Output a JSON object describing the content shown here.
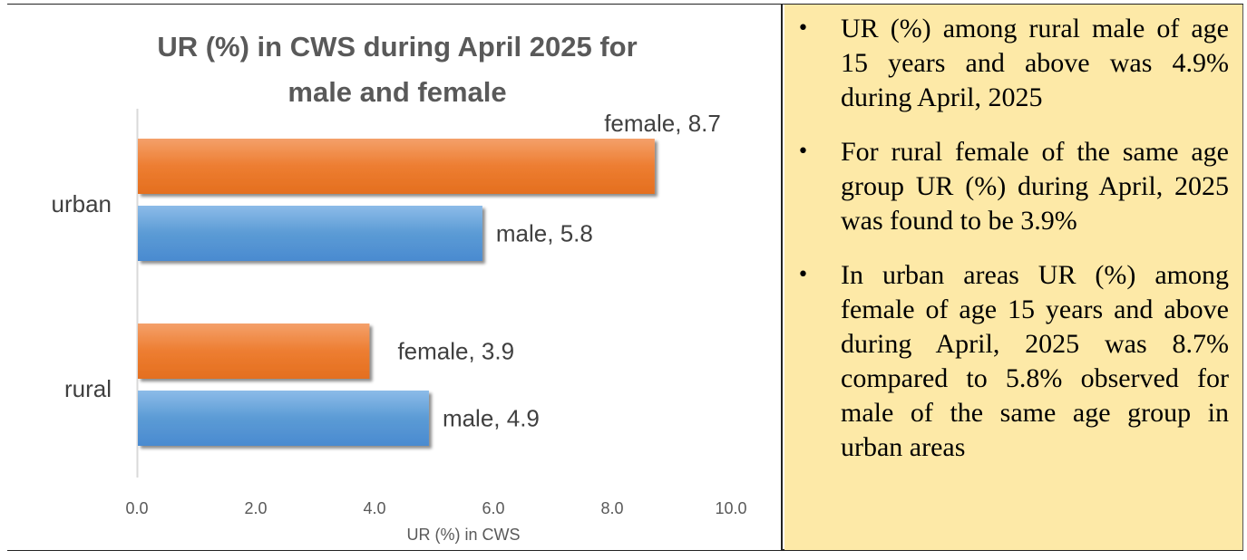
{
  "chart_data": {
    "type": "bar",
    "orientation": "horizontal",
    "title": "UR (%) in CWS during April 2025 for male and female",
    "title_lines": [
      "UR (%) in CWS during April 2025 for",
      "male and female"
    ],
    "categories": [
      "urban",
      "rural"
    ],
    "series": [
      {
        "name": "female",
        "values": [
          8.7,
          3.9
        ],
        "color": "#ed7d31"
      },
      {
        "name": "male",
        "values": [
          5.8,
          4.9
        ],
        "color": "#5b9bd5"
      }
    ],
    "data_labels": {
      "urban": {
        "female": "female, 8.7",
        "male": "male, 5.8"
      },
      "rural": {
        "female": "female, 3.9",
        "male": "male, 4.9"
      }
    },
    "xlabel": "UR (%) in CWS",
    "ylabel": "",
    "xlim": [
      0,
      10
    ],
    "x_ticks": [
      "0.0",
      "2.0",
      "4.0",
      "6.0",
      "8.0",
      "10.0"
    ],
    "grid": false,
    "legend": "none"
  },
  "notes": [
    "UR (%) among rural male of age 15 years and above was 4.9% during April, 2025",
    "For rural female of the same age group UR (%) during April, 2025 was found to be 3.9%",
    "In urban areas UR (%) among female of age 15 years and above during April, 2025 was 8.7% compared to 5.8% observed for male of the same age group in urban areas"
  ],
  "bullet_symbol": "•",
  "colors": {
    "panel_background": "#fde9a7"
  }
}
